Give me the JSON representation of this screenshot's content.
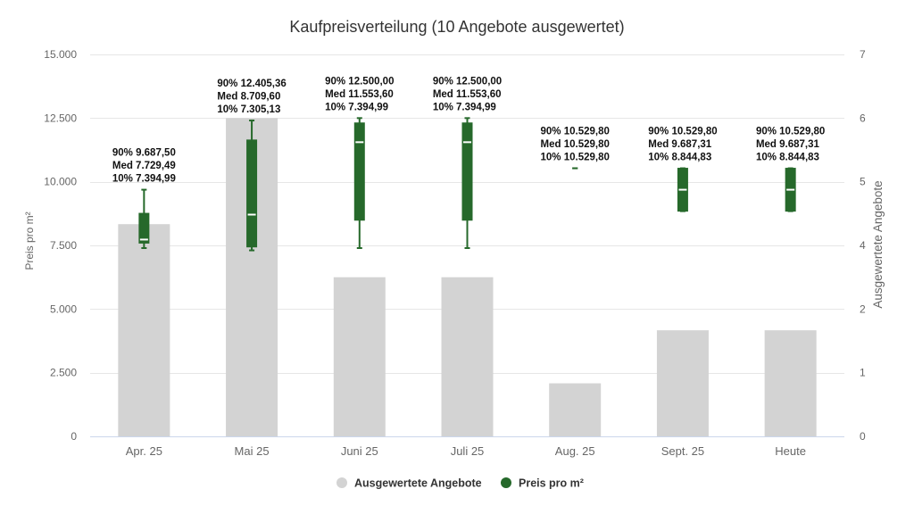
{
  "chart_data": {
    "type": "bar",
    "title": "Kaufpreisverteilung (10 Angebote ausgewertet)",
    "categories": [
      "Apr. 25",
      "Mai 25",
      "Juni 25",
      "Juli 25",
      "Aug. 25",
      "Sept. 25",
      "Heute"
    ],
    "xlabel": "",
    "ylabel": "Preis pro m²",
    "ylabel_right": "Ausgewertete Angebote",
    "ylim": [
      0,
      15000
    ],
    "ylim_right": [
      0,
      7.2
    ],
    "yticks": [
      {
        "value": 0,
        "label": "0"
      },
      {
        "value": 2500,
        "label": "2.500"
      },
      {
        "value": 5000,
        "label": "5.000"
      },
      {
        "value": 7500,
        "label": "7.500"
      },
      {
        "value": 10000,
        "label": "10.000"
      },
      {
        "value": 12500,
        "label": "12.500"
      },
      {
        "value": 15000,
        "label": "15.000"
      }
    ],
    "yticks_right": [
      {
        "value": 0,
        "label": "0"
      },
      {
        "value": 1.2,
        "label": "1"
      },
      {
        "value": 2.4,
        "label": "2"
      },
      {
        "value": 3.6,
        "label": "4"
      },
      {
        "value": 4.8,
        "label": "5"
      },
      {
        "value": 6.0,
        "label": "6"
      },
      {
        "value": 7.2,
        "label": "7"
      }
    ],
    "grid": true,
    "legend_position": "bottom",
    "series": [
      {
        "name": "Ausgewertete Angebote",
        "type": "bar",
        "axis": "right",
        "color": "#d3d3d3",
        "values": [
          4,
          6,
          3,
          3,
          1,
          2,
          2
        ]
      },
      {
        "name": "Preis pro m²",
        "type": "boxplot",
        "axis": "left",
        "color": "#26692b",
        "values": [
          {
            "p10": 7394.99,
            "q1": 7590,
            "median": 7729.49,
            "q3": 8760,
            "p90": 9687.5
          },
          {
            "p10": 7305.13,
            "q1": 7440,
            "median": 8709.6,
            "q3": 11640,
            "p90": 12405.36
          },
          {
            "p10": 7394.99,
            "q1": 8490,
            "median": 11553.6,
            "q3": 12310,
            "p90": 12500.0
          },
          {
            "p10": 7394.99,
            "q1": 8490,
            "median": 11553.6,
            "q3": 12310,
            "p90": 12500.0
          },
          {
            "p10": 10529.8,
            "q1": 10529.8,
            "median": 10529.8,
            "q3": 10529.8,
            "p90": 10529.8
          },
          {
            "p10": 8844.83,
            "q1": 8844.83,
            "median": 9687.31,
            "q3": 10529.8,
            "p90": 10529.8
          },
          {
            "p10": 8844.83,
            "q1": 8844.83,
            "median": 9687.31,
            "q3": 10529.8,
            "p90": 10529.8
          }
        ]
      }
    ],
    "data_labels": [
      [
        "90% 9.687,50",
        "Med 7.729,49",
        "10% 7.394,99"
      ],
      [
        "90% 12.405,36",
        "Med 8.709,60",
        "10% 7.305,13"
      ],
      [
        "90% 12.500,00",
        "Med 11.553,60",
        "10% 7.394,99"
      ],
      [
        "90% 12.500,00",
        "Med 11.553,60",
        "10% 7.394,99"
      ],
      [
        "90% 10.529,80",
        "Med 10.529,80",
        "10% 10.529,80"
      ],
      [
        "90% 10.529,80",
        "Med 9.687,31",
        "10% 8.844,83"
      ],
      [
        "90% 10.529,80",
        "Med 9.687,31",
        "10% 8.844,83"
      ]
    ]
  },
  "legend": {
    "items": [
      {
        "label": "Ausgewertete Angebote",
        "color": "#d3d3d3",
        "icon": "circle-icon"
      },
      {
        "label": "Preis pro m²",
        "color": "#26692b",
        "icon": "circle-icon"
      }
    ]
  },
  "colors": {
    "gridline": "#e6e6e6",
    "axis_line": "#ccd6eb",
    "median_line": "#ffffff",
    "tick_text": "#666666",
    "title_text": "#333333"
  }
}
